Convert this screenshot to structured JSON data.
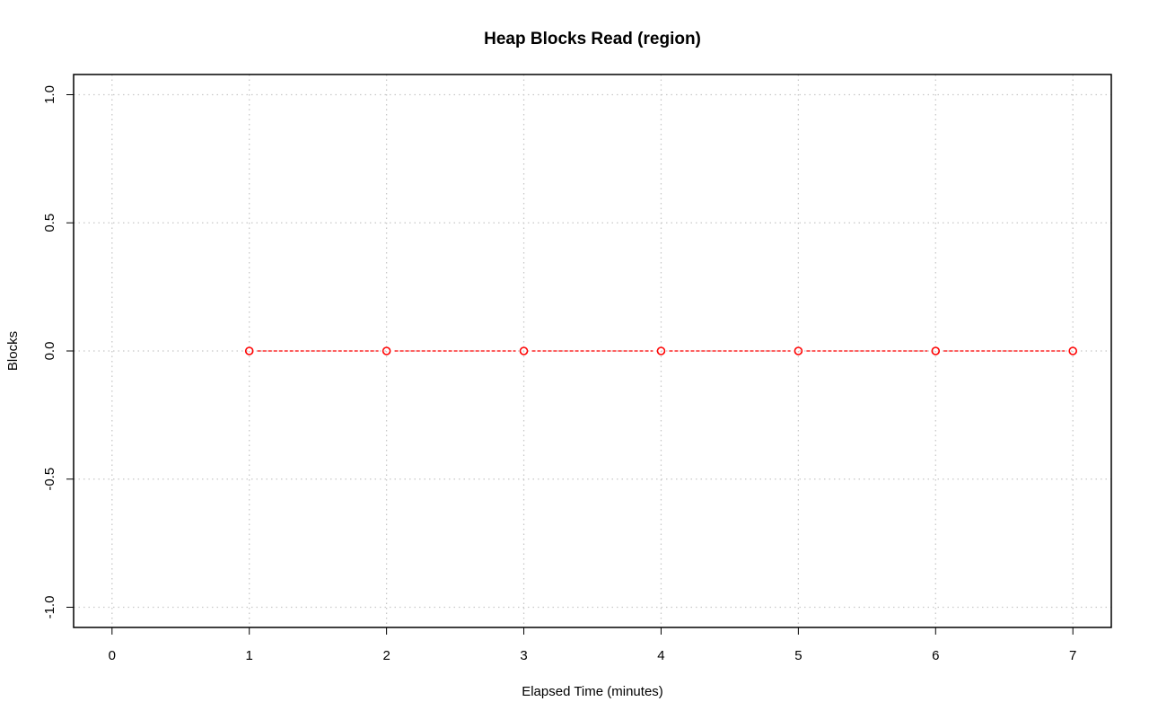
{
  "chart_data": {
    "type": "line",
    "title": "Heap Blocks Read (region)",
    "xlabel": "Elapsed Time (minutes)",
    "ylabel": "Blocks",
    "xlim": [
      0,
      7
    ],
    "ylim": [
      -1.0,
      1.0
    ],
    "x_ticks": [
      "0",
      "1",
      "2",
      "3",
      "4",
      "5",
      "6",
      "7"
    ],
    "y_ticks": [
      "-1.0",
      "-0.5",
      "0.0",
      "0.5",
      "1.0"
    ],
    "grid": true,
    "series": [
      {
        "color": "#ff0000",
        "line_style": "dashed",
        "marker": "open-circle",
        "x": [
          1,
          2,
          3,
          4,
          5,
          6,
          7
        ],
        "y": [
          0,
          0,
          0,
          0,
          0,
          0,
          0
        ]
      }
    ]
  }
}
